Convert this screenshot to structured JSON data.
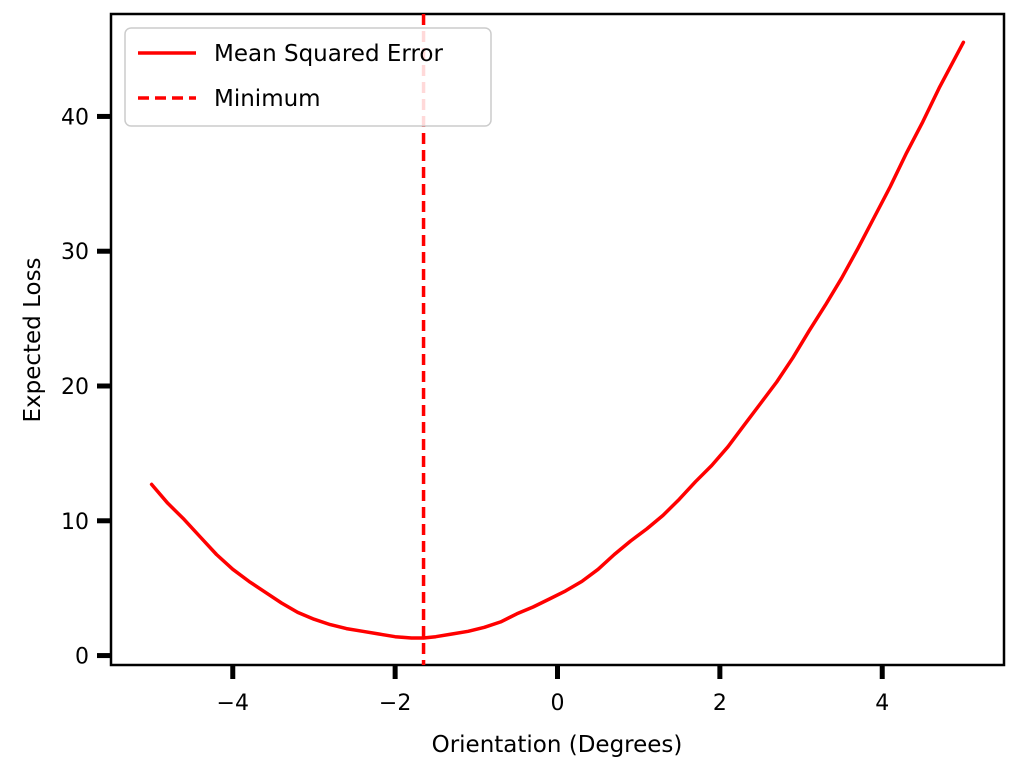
{
  "chart_data": {
    "type": "line",
    "title": "",
    "xlabel": "Orientation (Degrees)",
    "ylabel": "Expected Loss",
    "xlim": [
      -5.5,
      5.5
    ],
    "ylim": [
      -0.7,
      47.6
    ],
    "xticks": [
      -4,
      -2,
      0,
      2,
      4
    ],
    "xtick_labels": [
      "−4",
      "−2",
      "0",
      "2",
      "4"
    ],
    "yticks": [
      0,
      10,
      20,
      30,
      40
    ],
    "ytick_labels": [
      "0",
      "10",
      "20",
      "30",
      "40"
    ],
    "grid": false,
    "legend_position": "top-left",
    "series": [
      {
        "name": "Mean Squared Error",
        "style": "solid",
        "color": "#ff0000",
        "x": [
          -5.0,
          -4.8,
          -4.6,
          -4.4,
          -4.2,
          -4.0,
          -3.8,
          -3.6,
          -3.4,
          -3.2,
          -3.0,
          -2.8,
          -2.6,
          -2.4,
          -2.2,
          -2.0,
          -1.8,
          -1.65,
          -1.5,
          -1.3,
          -1.1,
          -0.9,
          -0.7,
          -0.5,
          -0.3,
          -0.1,
          0.1,
          0.3,
          0.5,
          0.7,
          0.9,
          1.1,
          1.3,
          1.5,
          1.7,
          1.9,
          2.1,
          2.3,
          2.5,
          2.7,
          2.9,
          3.1,
          3.3,
          3.5,
          3.7,
          3.9,
          4.1,
          4.3,
          4.5,
          4.7,
          5.0
        ],
        "values": [
          12.7,
          11.3,
          10.1,
          8.8,
          7.5,
          6.4,
          5.5,
          4.7,
          3.9,
          3.2,
          2.7,
          2.3,
          2.0,
          1.8,
          1.6,
          1.4,
          1.3,
          1.3,
          1.4,
          1.6,
          1.8,
          2.1,
          2.5,
          3.1,
          3.6,
          4.2,
          4.8,
          5.5,
          6.4,
          7.5,
          8.5,
          9.4,
          10.4,
          11.6,
          12.9,
          14.1,
          15.5,
          17.1,
          18.7,
          20.3,
          22.1,
          24.1,
          26.0,
          28.0,
          30.2,
          32.5,
          34.8,
          37.3,
          39.6,
          42.1,
          45.5
        ]
      },
      {
        "name": "Minimum",
        "style": "dashed",
        "color": "#ff0000",
        "x_constant": -1.65
      }
    ]
  }
}
